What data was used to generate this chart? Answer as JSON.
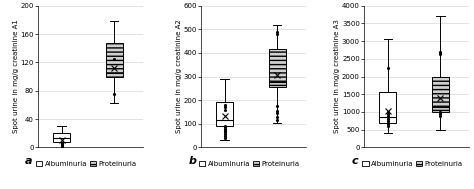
{
  "panels": [
    {
      "label": "a",
      "ylabel": "Spot urine in mg/g creatinine A1",
      "ylim": [
        0,
        200
      ],
      "yticks": [
        0,
        40,
        80,
        120,
        160,
        200
      ],
      "albuminuria": {
        "whislo": 1,
        "q1": 7,
        "med": 13,
        "q3": 20,
        "whishi": 30,
        "mean": 11,
        "fliers": [
          1,
          2,
          3,
          4,
          5,
          6
        ]
      },
      "proteinuria": {
        "whislo": 63,
        "q1": 100,
        "med": 105,
        "q3": 147,
        "whishi": 178,
        "mean": 112,
        "fliers": [
          75,
          125
        ]
      }
    },
    {
      "label": "b",
      "ylabel": "Spot urine in mg/g creatinine A2",
      "ylim": [
        0,
        600
      ],
      "yticks": [
        0,
        100,
        200,
        300,
        400,
        500,
        600
      ],
      "albuminuria": {
        "whislo": 30,
        "q1": 90,
        "med": 115,
        "q3": 193,
        "whishi": 290,
        "mean": 133,
        "fliers": [
          40,
          50,
          55,
          65,
          70,
          75,
          80,
          85,
          90,
          160,
          170,
          180
        ]
      },
      "proteinuria": {
        "whislo": 105,
        "q1": 255,
        "med": 275,
        "q3": 415,
        "whishi": 520,
        "mean": 308,
        "fliers": [
          115,
          130,
          145,
          155,
          175,
          480,
          490
        ]
      }
    },
    {
      "label": "c",
      "ylabel": "Spot urine in mg/g creatinine A3",
      "ylim": [
        0,
        4000
      ],
      "yticks": [
        0,
        500,
        1000,
        1500,
        2000,
        2500,
        3000,
        3500,
        4000
      ],
      "albuminuria": {
        "whislo": 400,
        "q1": 680,
        "med": 870,
        "q3": 1550,
        "whishi": 3050,
        "mean": 1030,
        "fliers": [
          600,
          650,
          700,
          750,
          800,
          850,
          900,
          950,
          1000,
          2250
        ]
      },
      "proteinuria": {
        "whislo": 480,
        "q1": 1000,
        "med": 1150,
        "q3": 2000,
        "whishi": 3700,
        "mean": 1400,
        "fliers": [
          900,
          950,
          1000,
          2650,
          2700
        ]
      }
    }
  ],
  "alb_color": "#ffffff",
  "prot_color": "#d0d0d0",
  "prot_hatch": "----",
  "legend_labels": [
    "Albuminuria",
    "Proteinuria"
  ],
  "fig_bg": "#ffffff",
  "box_width": 0.32,
  "flier_marker": ".",
  "mean_marker": "x",
  "mean_markersize": 4,
  "flier_markersize": 2.5,
  "fontsize_ylabel": 5.0,
  "fontsize_ticks": 5.0,
  "fontsize_legend": 5.0,
  "fontsize_label": 8
}
